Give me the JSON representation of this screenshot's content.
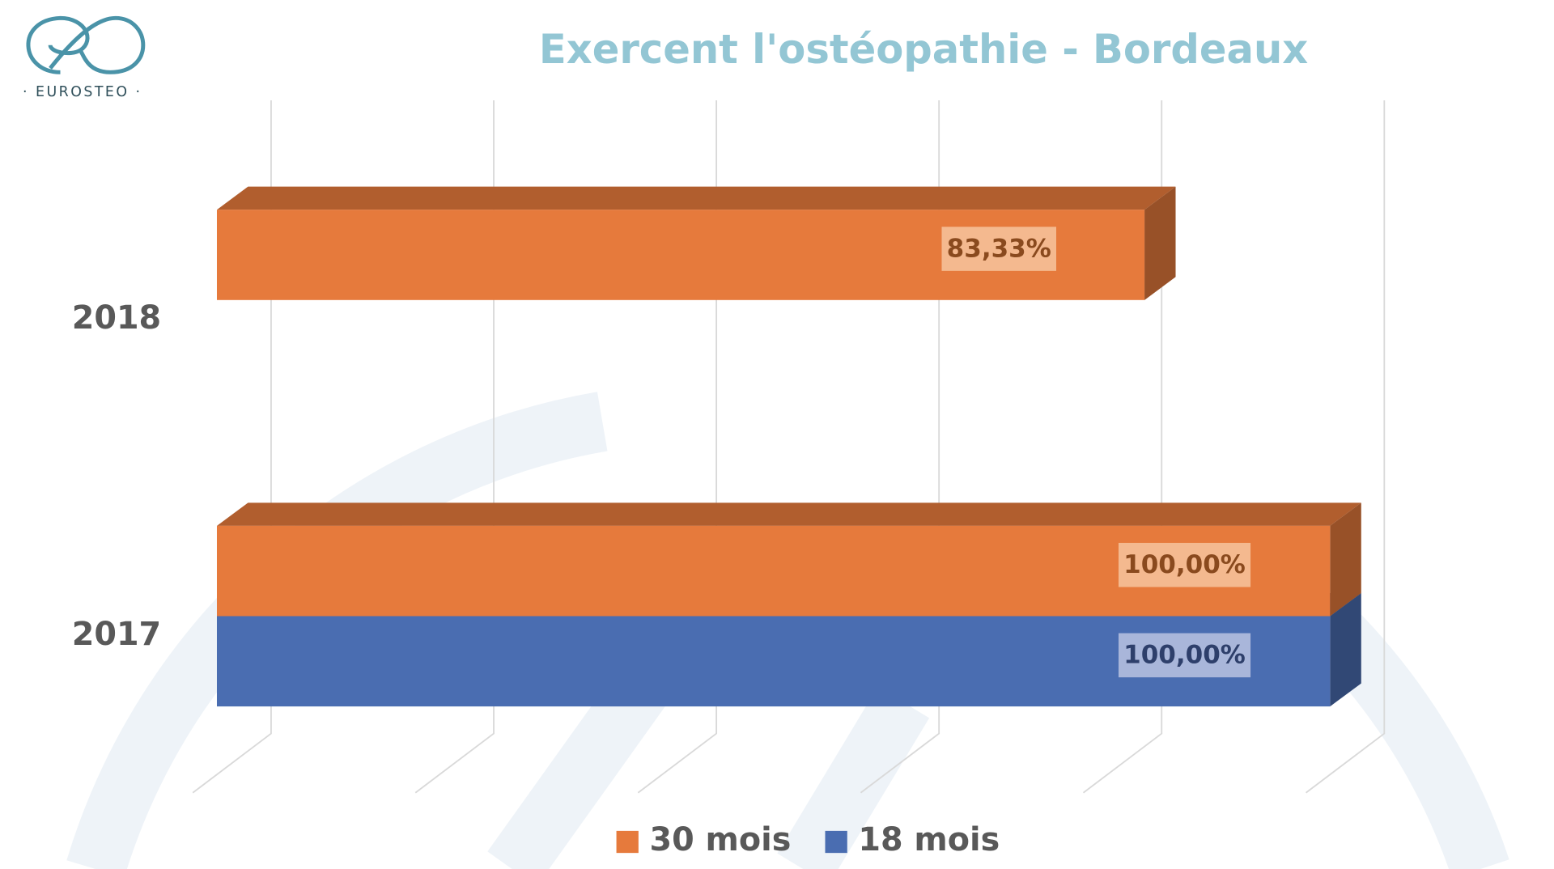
{
  "logo": {
    "text": "· EUROSTEO ·"
  },
  "chart_data": {
    "type": "bar3d-horizontal",
    "title": "Exercent l'ostéopathie - Bordeaux",
    "categories": [
      "2018",
      "2017"
    ],
    "series": [
      {
        "name": "30 mois",
        "color": "#e67a3c",
        "values": [
          83.33,
          100
        ],
        "value_labels": [
          "83,33%",
          "100,00%"
        ]
      },
      {
        "name": "18 mois",
        "color": "#4a6db1",
        "values": [
          null,
          100
        ],
        "value_labels": [
          null,
          "100,00%"
        ]
      }
    ],
    "xlim": [
      0,
      100
    ],
    "xticks": [
      0,
      20,
      40,
      60,
      80,
      100
    ],
    "grid": true,
    "legend": "bottom"
  }
}
